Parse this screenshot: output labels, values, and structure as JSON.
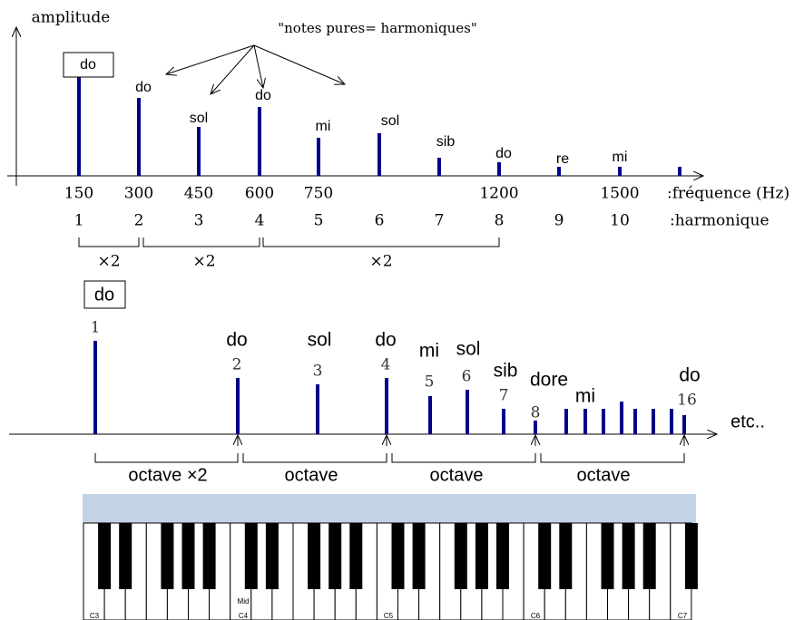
{
  "top": {
    "y_axis_label": "amplitude",
    "annotation": "\"notes pures= harmoniques\"",
    "notes": [
      "do",
      "do",
      "sol",
      "do",
      "mi",
      "sol",
      "sib",
      "do",
      "re",
      "mi"
    ],
    "frequencies": [
      150,
      300,
      450,
      600,
      750,
      1200,
      1500
    ],
    "frequency_label": ":fréquence (Hz)",
    "harmonics": [
      1,
      2,
      3,
      4,
      5,
      6,
      7,
      8,
      9,
      10
    ],
    "harmonic_label": ":harmonique",
    "ratios": [
      "×2",
      "×2",
      "×2"
    ]
  },
  "bottom": {
    "boxed_note": "do",
    "numbers": [
      1,
      2,
      3,
      4,
      5,
      6,
      7,
      8,
      16
    ],
    "notes": [
      "do",
      "sol",
      "do",
      "mi",
      "sol",
      "sib",
      "dore",
      "mi",
      "do"
    ],
    "etc": "etc..",
    "octaves": [
      "octave ×2",
      "octave",
      "octave",
      "octave"
    ]
  },
  "keyboard": {
    "labels": [
      "C3",
      "Mid",
      "C4",
      "C5",
      "C6",
      "C7"
    ]
  }
}
